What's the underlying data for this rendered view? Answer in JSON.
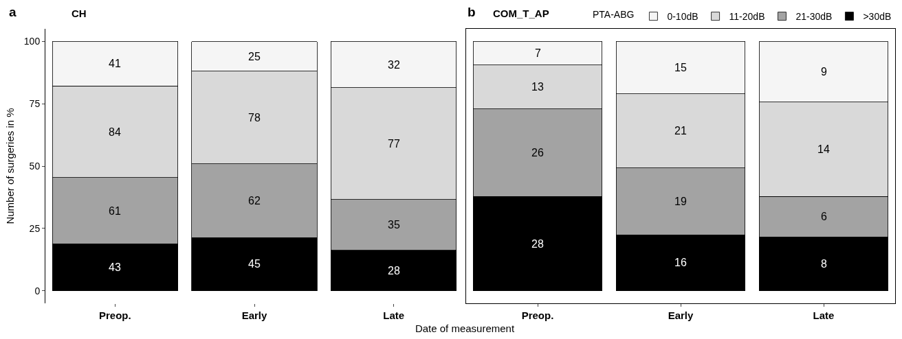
{
  "chart_data": [
    {
      "type": "bar",
      "title": "CH",
      "xlabel": "Date of measurement",
      "ylabel": "Number of surgeries in %",
      "stacked": true,
      "categories": [
        "Preop.",
        "Early",
        "Late"
      ],
      "ylim": [
        -5,
        105
      ],
      "yticks": [
        0,
        25,
        50,
        75,
        100
      ],
      "grid": false,
      "legend": false,
      "series": [
        {
          "color": "#000000",
          "values": [
            18.8,
            21.4,
            16.3
          ]
        },
        {
          "color": "#a3a3a3",
          "values": [
            26.6,
            29.5,
            20.3
          ]
        },
        {
          "color": "#d9d9d9",
          "values": [
            36.7,
            37.1,
            44.8
          ]
        },
        {
          "color": "#f5f5f5",
          "values": [
            17.9,
            11.9,
            18.6
          ]
        }
      ],
      "annotations": [
        "a",
        "43",
        "61",
        "84",
        "41",
        "45",
        "62",
        "78",
        "25",
        "28",
        "35",
        "77",
        "32"
      ]
    },
    {
      "type": "bar",
      "title": "COM_T_AP",
      "legend_title": "PTA-ABG",
      "stacked": true,
      "categories": [
        "Preop.",
        "Early",
        "Late"
      ],
      "ylim": [
        -5,
        105
      ],
      "yticks": [
        0,
        25,
        50,
        75,
        100
      ],
      "tick_labels": "x",
      "grid": false,
      "legend": "top right",
      "series": [
        {
          "name": ">30dB",
          "color": "#000000",
          "values": [
            37.8,
            22.5,
            21.6
          ]
        },
        {
          "name": "21-30dB",
          "color": "#a3a3a3",
          "values": [
            35.1,
            26.8,
            16.2
          ]
        },
        {
          "name": "11-20dB",
          "color": "#d9d9d9",
          "values": [
            17.6,
            29.6,
            37.8
          ]
        },
        {
          "name": "0-10dB",
          "color": "#f5f5f5",
          "values": [
            9.5,
            21.1,
            24.3
          ]
        }
      ],
      "annotations": [
        "b",
        "28",
        "26",
        "13",
        "7",
        "16",
        "19",
        "21",
        "15",
        "8",
        "6",
        "14",
        "9"
      ]
    }
  ]
}
